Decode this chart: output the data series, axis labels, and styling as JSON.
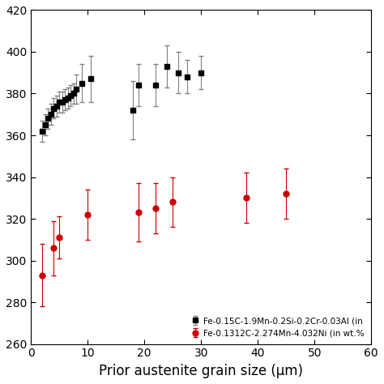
{
  "sq_x": [
    2.0,
    2.5,
    3.0,
    3.5,
    4.0,
    4.5,
    5.0,
    5.5,
    6.0,
    6.5,
    7.0,
    7.5,
    8.0,
    9.0,
    10.5,
    18.0,
    19.0,
    22.0,
    24.0,
    26.0,
    27.5,
    30.0
  ],
  "sq_y": [
    362,
    365,
    368,
    370,
    373,
    374,
    376,
    376,
    377,
    378,
    379,
    380,
    382,
    385,
    387,
    372,
    384,
    384,
    393,
    390,
    388,
    390
  ],
  "sq_yerr": [
    5,
    5,
    5,
    5,
    5,
    5,
    5,
    5,
    5,
    5,
    5,
    5,
    7,
    9,
    11,
    14,
    10,
    10,
    10,
    10,
    8,
    8
  ],
  "red_x": [
    2,
    4,
    5,
    10,
    19,
    22,
    25,
    38,
    45
  ],
  "red_y": [
    293,
    306,
    311,
    322,
    323,
    325,
    328,
    330,
    332
  ],
  "red_yerr": [
    15,
    13,
    10,
    12,
    14,
    12,
    12,
    12,
    12
  ],
  "xlabel": "Prior austenite grain size (μm)",
  "xlim": [
    0,
    60
  ],
  "ylim": [
    260,
    420
  ],
  "yticks": [
    260,
    280,
    300,
    320,
    340,
    360,
    380,
    400,
    420
  ],
  "xticks": [
    0,
    10,
    20,
    30,
    40,
    50,
    60
  ],
  "legend1": "Fe-0.15C-1.9Mn-0.2Si-0.2Cr-0.03Al (in",
  "legend2": "Fe-0.1312C-2.274Mn-4.032Ni (in wt.%",
  "black_color": "#000000",
  "red_color": "#cc0000",
  "ecolor_black": "#808080",
  "ecolor_red": "#cc0000"
}
